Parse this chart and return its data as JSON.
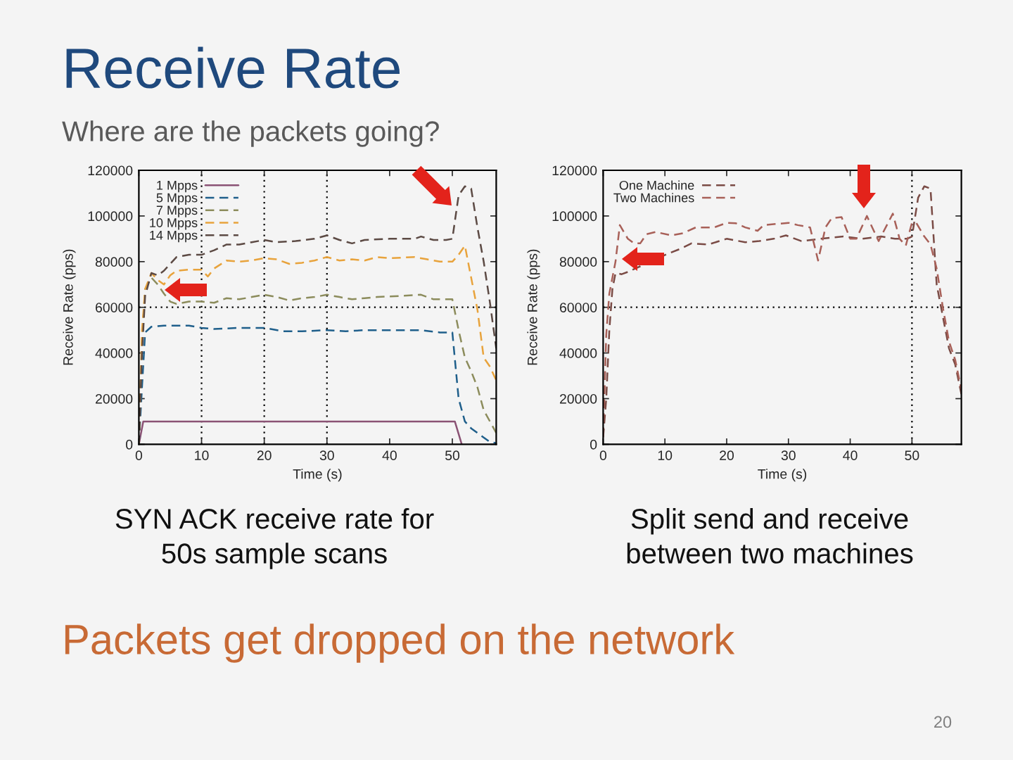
{
  "chart_data": [
    {
      "type": "line",
      "title": "Receive Rate",
      "subtitle": "Where are the packets going?",
      "xlabel": "Time (s)",
      "ylabel": "Receive Rate (pps)",
      "xlim": [
        0,
        57
      ],
      "ylim": [
        0,
        120000
      ],
      "xticks": [
        0,
        10,
        20,
        30,
        40,
        50
      ],
      "yticks": [
        0,
        20000,
        40000,
        60000,
        80000,
        100000,
        120000
      ],
      "legend": "top left",
      "ref_lines": [
        {
          "axis": "x",
          "value": 10,
          "color": "#000000",
          "line_style": "dotted"
        },
        {
          "axis": "x",
          "value": 20,
          "color": "#000000",
          "line_style": "dotted"
        },
        {
          "axis": "x",
          "value": 30,
          "color": "#000000",
          "line_style": "dotted"
        },
        {
          "axis": "y",
          "value": 60000,
          "color": "#000000",
          "line_style": "dotted"
        }
      ],
      "annotations": [
        "SYN ACK receive rate for\n50s sample scans",
        "Packets get dropped on the network",
        "20"
      ],
      "series": [
        {
          "name": "1 Mpps",
          "color": "#8a5274",
          "line_style": "solid",
          "x": [
            0,
            0.7,
            50.4,
            51.5
          ],
          "values": [
            0,
            10000,
            10000,
            0
          ]
        },
        {
          "name": "5 Mpps",
          "color": "#1f5f8b",
          "line_style": "dashed",
          "x": [
            0,
            0.5,
            1,
            2,
            4,
            8,
            10,
            12,
            16,
            20,
            23,
            26,
            30,
            33,
            36,
            40,
            45,
            48,
            50,
            51,
            52,
            53,
            55,
            56,
            57
          ],
          "values": [
            0,
            25000,
            49000,
            51500,
            52000,
            52000,
            51000,
            50500,
            51000,
            51000,
            49500,
            49500,
            50000,
            49500,
            50000,
            50000,
            50000,
            49000,
            49000,
            20000,
            10000,
            7000,
            3000,
            1000,
            500
          ]
        },
        {
          "name": "7 Mpps",
          "color": "#8c8c5c",
          "line_style": "dashed",
          "x": [
            0,
            0.5,
            1,
            2,
            3,
            4,
            5,
            6,
            8,
            10,
            12,
            14,
            16,
            18,
            20,
            22,
            24,
            26,
            28,
            30,
            32,
            34,
            36,
            38,
            42,
            45,
            47,
            50,
            51,
            52,
            53,
            54,
            55,
            56,
            57
          ],
          "values": [
            0,
            45000,
            68000,
            73000,
            70000,
            66000,
            62500,
            61500,
            62500,
            62500,
            62000,
            64000,
            63500,
            64500,
            65500,
            64500,
            63000,
            64000,
            64500,
            65500,
            64500,
            63500,
            64000,
            64500,
            65000,
            65500,
            63500,
            63500,
            50000,
            38000,
            32000,
            25000,
            15000,
            10000,
            5000
          ]
        },
        {
          "name": "10 Mpps",
          "color": "#e8a33c",
          "line_style": "dashed",
          "x": [
            0,
            0.5,
            1,
            2,
            3,
            4,
            5,
            6,
            8,
            10,
            11,
            12,
            14,
            16,
            18,
            20,
            22,
            24,
            26,
            28,
            30,
            32,
            34,
            36,
            38,
            40,
            44,
            46,
            48,
            50,
            51,
            52,
            53,
            54,
            55,
            56,
            57
          ],
          "values": [
            0,
            50000,
            68000,
            75000,
            72000,
            70000,
            74000,
            76000,
            76500,
            76500,
            73500,
            77000,
            80500,
            80000,
            80500,
            81500,
            81000,
            79000,
            79500,
            80500,
            82000,
            80500,
            81000,
            80500,
            82000,
            81500,
            82000,
            81000,
            80000,
            80000,
            83000,
            87000,
            73000,
            59000,
            38000,
            34000,
            28000
          ]
        },
        {
          "name": "14 Mpps",
          "color": "#5c4a44",
          "line_style": "dashed",
          "x": [
            0,
            0.5,
            1,
            2,
            3,
            4,
            5,
            6,
            8,
            10,
            12,
            14,
            16,
            18,
            20,
            22,
            25,
            28,
            30,
            32,
            34,
            36,
            40,
            44,
            45,
            47,
            49,
            50,
            51,
            52,
            53,
            54,
            55,
            56,
            57
          ],
          "values": [
            0,
            40000,
            65000,
            75000,
            74000,
            76000,
            79000,
            82000,
            83000,
            83000,
            85000,
            87500,
            87500,
            88500,
            89500,
            88500,
            89000,
            90000,
            91500,
            89500,
            88000,
            89500,
            90000,
            90000,
            91000,
            89500,
            89500,
            90000,
            109000,
            113000,
            112000,
            95000,
            80000,
            62000,
            42000
          ]
        }
      ]
    },
    {
      "type": "line",
      "xlabel": "Time (s)",
      "ylabel": "Receive Rate (pps)",
      "xlim": [
        0,
        58
      ],
      "ylim": [
        0,
        120000
      ],
      "xticks": [
        0,
        10,
        20,
        30,
        40,
        50
      ],
      "yticks": [
        0,
        20000,
        40000,
        60000,
        80000,
        100000,
        120000
      ],
      "legend": "top left",
      "ref_lines": [
        {
          "axis": "x",
          "value": 50,
          "color": "#000000",
          "line_style": "dotted"
        },
        {
          "axis": "y",
          "value": 60000,
          "color": "#000000",
          "line_style": "dotted"
        }
      ],
      "annotations": [
        "Split send and receive\nbetween two machines"
      ],
      "series": [
        {
          "name": "One Machine",
          "color": "#7a4b45",
          "line_style": "dashed",
          "x": [
            0,
            0.5,
            1,
            1.5,
            2,
            3,
            4,
            5.2,
            6.4,
            8.6,
            10.5,
            12.4,
            14.3,
            17,
            20,
            23,
            25.3,
            27.6,
            29.6,
            32.1,
            35.2,
            38.9,
            42,
            45,
            47.3,
            49.2,
            50,
            51,
            52,
            53,
            54,
            55,
            56,
            57,
            58
          ],
          "values": [
            3000,
            20000,
            50000,
            68000,
            75000,
            74500,
            75500,
            null,
            null,
            null,
            83500,
            85500,
            88000,
            87500,
            90000,
            88500,
            89000,
            90000,
            91500,
            89000,
            90000,
            91000,
            90000,
            91000,
            90000,
            90000,
            91000,
            108000,
            113000,
            112000,
            70000,
            56000,
            42000,
            35000,
            22000
          ]
        },
        {
          "name": "Two Machines",
          "color": "#a86058",
          "line_style": "dashed",
          "x": [
            0,
            0.5,
            1,
            2,
            2.7,
            4,
            5,
            6,
            7,
            8.5,
            11,
            13,
            15,
            18,
            20,
            21.5,
            23,
            25,
            26,
            28,
            30,
            31.5,
            33.5,
            34.8,
            36,
            37,
            38.6,
            40,
            41,
            42.7,
            44.6,
            46.9,
            48,
            49,
            50,
            50.7,
            52,
            53,
            54,
            55,
            56,
            57,
            58
          ],
          "values": [
            3500,
            48000,
            66000,
            80000,
            96000,
            90000,
            88000,
            88000,
            92000,
            93000,
            91500,
            92500,
            95000,
            95000,
            97000,
            96800,
            95000,
            93500,
            96000,
            96500,
            97000,
            96000,
            95000,
            80500,
            95000,
            99000,
            99500,
            90000,
            90000,
            100000,
            89000,
            101000,
            90000,
            87000,
            97000,
            97000,
            91000,
            87500,
            77000,
            60000,
            45000,
            37000,
            24000
          ]
        }
      ]
    }
  ]
}
